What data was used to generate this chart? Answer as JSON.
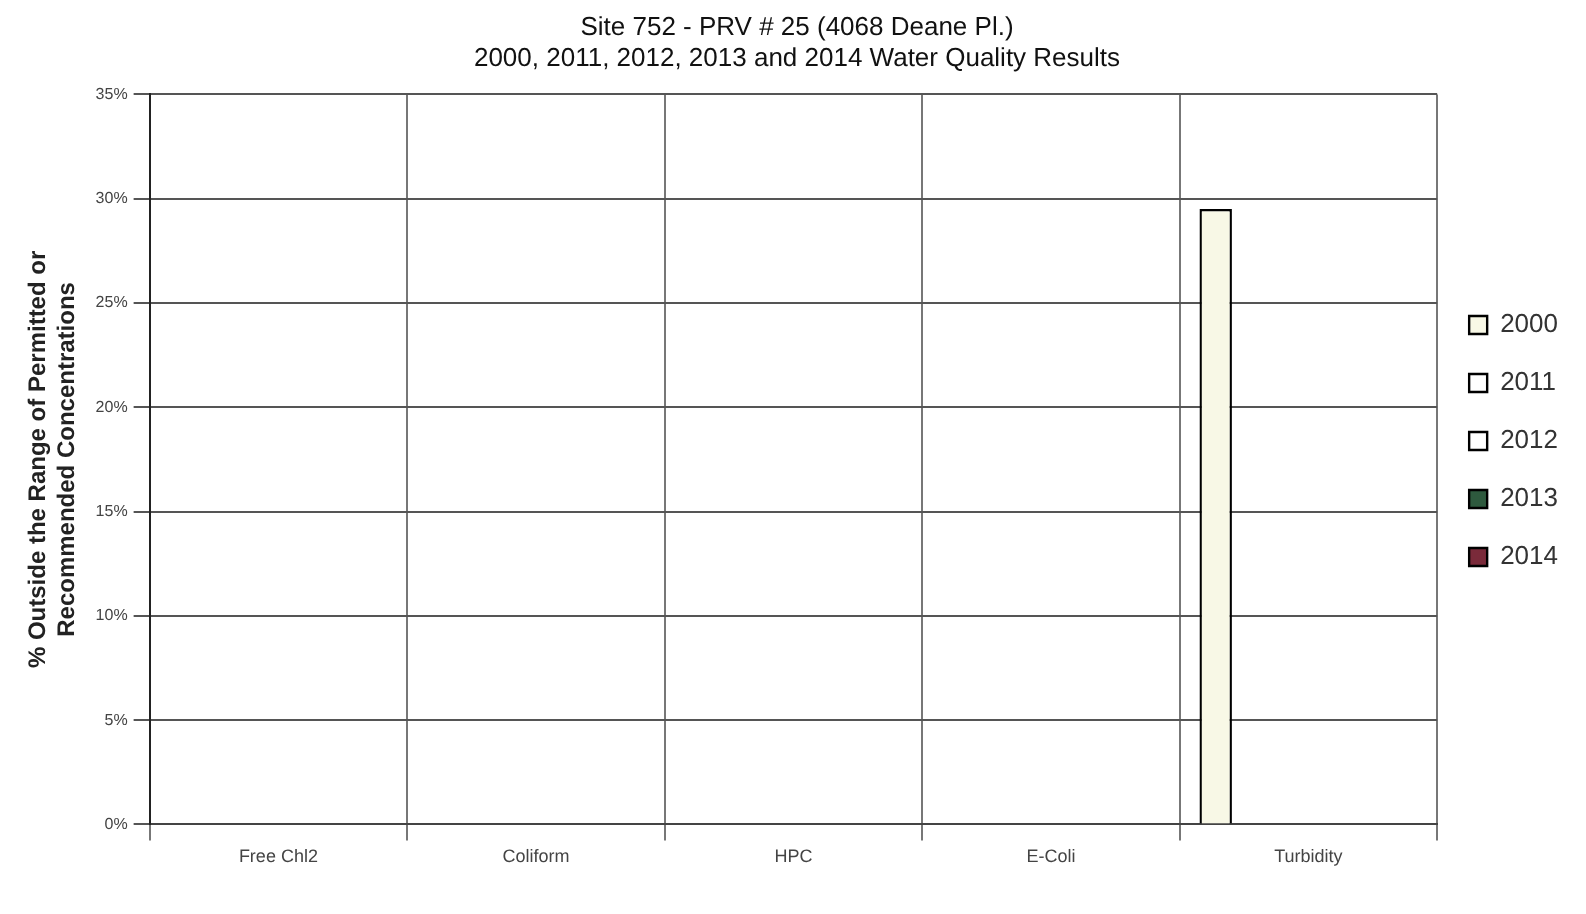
{
  "chart_data": {
    "type": "bar",
    "title": [
      "Site 752 - PRV # 25 (4068 Deane Pl.)",
      "2000, 2011, 2012, 2013 and 2014 Water Quality Results"
    ],
    "ylabel": [
      "% Outside the Range of Permitted or",
      "Recommended Concentrations"
    ],
    "categories": [
      "Free Chl2",
      "Coliform",
      "HPC",
      "E-Coli",
      "Turbidity"
    ],
    "series": [
      {
        "name": "2000",
        "color": "#f8f8e6",
        "values": [
          0,
          0,
          0,
          0,
          29.5
        ]
      },
      {
        "name": "2011",
        "color": "#ffffff",
        "values": [
          0,
          0,
          0,
          0,
          0
        ]
      },
      {
        "name": "2012",
        "color": "#ffffff",
        "values": [
          0,
          0,
          0,
          0,
          0
        ]
      },
      {
        "name": "2013",
        "color": "#2e5a3e",
        "values": [
          0,
          0,
          0,
          0,
          0
        ]
      },
      {
        "name": "2014",
        "color": "#7a2a3a",
        "values": [
          0,
          0,
          0,
          0,
          0
        ]
      }
    ],
    "ylim": [
      0,
      35
    ],
    "yticks": [
      {
        "value": 0,
        "label": "0%"
      },
      {
        "value": 5,
        "label": "5%"
      },
      {
        "value": 10,
        "label": "10%"
      },
      {
        "value": 15,
        "label": "15%"
      },
      {
        "value": 20,
        "label": "20%"
      },
      {
        "value": 25,
        "label": "25%"
      },
      {
        "value": 30,
        "label": "30%"
      },
      {
        "value": 35,
        "label": "35%"
      }
    ],
    "grid": true,
    "legend": "right"
  }
}
